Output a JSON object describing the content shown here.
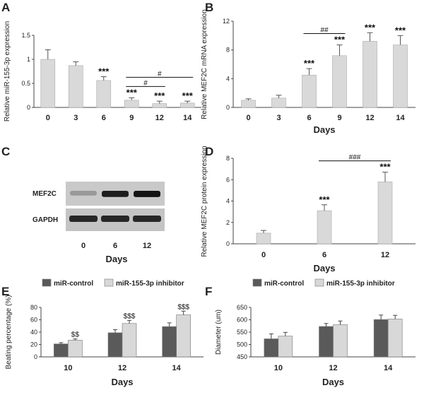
{
  "panels": {
    "A": "A",
    "B": "B",
    "C": "C",
    "D": "D",
    "E": "E",
    "F": "F"
  },
  "blot": {
    "labels": [
      "MEF2C",
      "GAPDH"
    ],
    "lanes": [
      "0",
      "6",
      "12"
    ],
    "xlabel": "Days",
    "mef2c_intensity": [
      0.25,
      0.9,
      0.95
    ],
    "gapdh_intensity": [
      0.85,
      0.85,
      0.85
    ]
  },
  "chart_data": [
    {
      "id": "A",
      "type": "bar",
      "categories": [
        "0",
        "3",
        "6",
        "9",
        "12",
        "14"
      ],
      "values": [
        1.0,
        0.87,
        0.56,
        0.15,
        0.08,
        0.09
      ],
      "errors": [
        0.2,
        0.08,
        0.08,
        0.05,
        0.05,
        0.04
      ],
      "ylabel": "Relative miR-155-3p expression",
      "xlabel": "",
      "ylim": [
        0,
        1.5
      ],
      "yticks": [
        "0",
        "0.5",
        "1",
        "1.5"
      ],
      "stars": [
        "",
        "",
        "***",
        "***",
        "***",
        "***"
      ],
      "sig_brackets": [
        {
          "from": "9",
          "to": "12",
          "label": "#"
        },
        {
          "from": "9",
          "to": "14",
          "label": "#"
        }
      ]
    },
    {
      "id": "B",
      "type": "bar",
      "categories": [
        "0",
        "3",
        "6",
        "9",
        "12",
        "14"
      ],
      "values": [
        1.0,
        1.3,
        4.5,
        7.2,
        9.2,
        8.7
      ],
      "errors": [
        0.2,
        0.4,
        0.9,
        1.5,
        1.2,
        1.3
      ],
      "ylabel": "Relative MEF2C mRNA expression",
      "xlabel": "Days",
      "ylim": [
        0,
        12
      ],
      "yticks": [
        "0",
        "4",
        "8",
        "12"
      ],
      "stars": [
        "",
        "",
        "***",
        "***",
        "***",
        "***"
      ],
      "sig_brackets": [
        {
          "from": "6",
          "to": "9",
          "label": "##"
        }
      ]
    },
    {
      "id": "D",
      "type": "bar",
      "categories": [
        "0",
        "6",
        "12"
      ],
      "values": [
        1.0,
        3.1,
        5.8
      ],
      "errors": [
        0.25,
        0.55,
        0.9
      ],
      "ylabel": "Relative MEF2C protein expression",
      "xlabel": "Days",
      "ylim": [
        0,
        8
      ],
      "yticks": [
        "0",
        "2",
        "4",
        "6",
        "8"
      ],
      "stars": [
        "",
        "***",
        "***"
      ],
      "sig_brackets": [
        {
          "from": "6",
          "to": "12",
          "label": "###"
        }
      ]
    },
    {
      "id": "E",
      "type": "bar",
      "categories": [
        "10",
        "12",
        "14"
      ],
      "series": [
        {
          "name": "miR-control",
          "values": [
            21,
            39,
            49
          ],
          "errors": [
            2,
            5,
            6
          ],
          "color": "#5a5a5a"
        },
        {
          "name": "miR-155-3p inhibitor",
          "values": [
            27,
            54,
            68
          ],
          "errors": [
            2,
            5,
            6
          ],
          "color": "#d8d8d8"
        }
      ],
      "ylabel": "Beating percentage (%)",
      "xlabel": "Days",
      "ylim": [
        0,
        80
      ],
      "yticks": [
        "0",
        "20",
        "40",
        "60",
        "80"
      ],
      "annotations": [
        "$$",
        "$$$",
        "$$$"
      ]
    },
    {
      "id": "F",
      "type": "bar",
      "categories": [
        "10",
        "12",
        "14"
      ],
      "series": [
        {
          "name": "miR-control",
          "values": [
            523,
            573,
            601
          ],
          "errors": [
            20,
            12,
            18
          ],
          "color": "#5a5a5a"
        },
        {
          "name": "miR-155-3p inhibitor",
          "values": [
            534,
            580,
            603
          ],
          "errors": [
            15,
            15,
            15
          ],
          "color": "#d8d8d8"
        }
      ],
      "ylabel": "Diameter (um)",
      "xlabel": "Days",
      "ylim": [
        450,
        650
      ],
      "yticks": [
        "450",
        "500",
        "550",
        "600",
        "650"
      ],
      "annotations": [
        "",
        "",
        ""
      ]
    }
  ]
}
